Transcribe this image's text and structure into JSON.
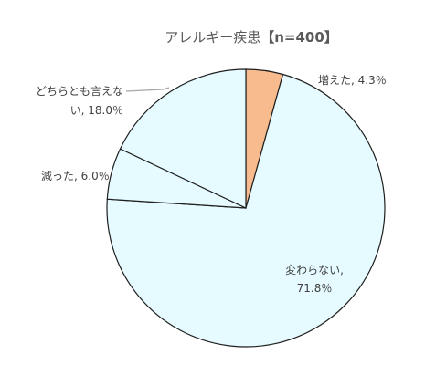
{
  "chart_data": {
    "type": "pie",
    "title": {
      "main": "アレルギー疾患",
      "sample": "【n=400】"
    },
    "slices": [
      {
        "label": "増えた",
        "value": 4.3,
        "color": "#f7bb8d",
        "label_lines": [
          "増えた, 4.3％"
        ]
      },
      {
        "label": "変わらない",
        "value": 71.8,
        "color": "#e6fbff",
        "label_lines": [
          "変わらない,",
          "71.8％"
        ]
      },
      {
        "label": "減った",
        "value": 6.0,
        "color": "#e6fbff",
        "label_lines": [
          "減った, 6.0％"
        ]
      },
      {
        "label": "どちらとも言えない",
        "value": 18.0,
        "color": "#e6fbff",
        "label_lines": [
          "どちらとも言えな",
          "い, 18.0％"
        ]
      }
    ],
    "start_angle_deg": 0,
    "direction": "clockwise",
    "legend": "none",
    "units": "％"
  }
}
